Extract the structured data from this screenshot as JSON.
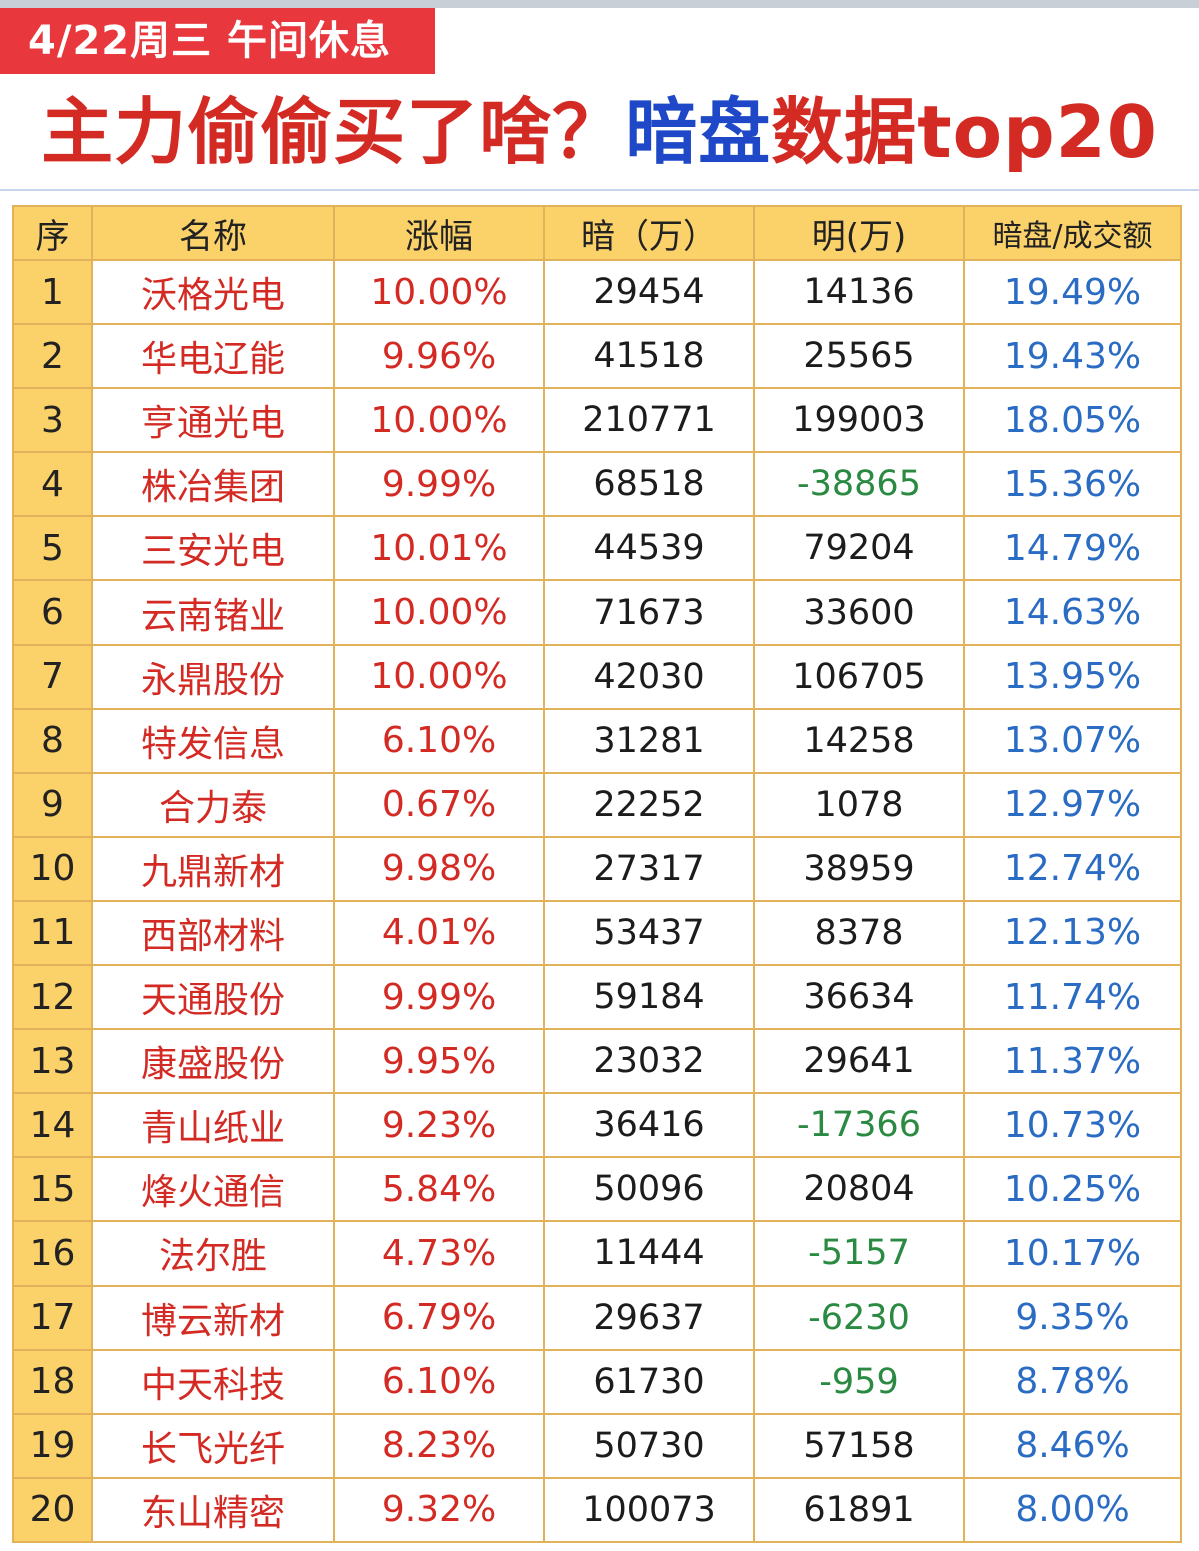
{
  "banner": {
    "date_text": "4/22周三 午间休息"
  },
  "headline": {
    "part1": "主力偷偷买了啥？",
    "part2": "暗盘",
    "part3": "数据top20"
  },
  "colors": {
    "red": "#d42a24",
    "blue": "#1f48c8",
    "green": "#2a8a42",
    "header_yellow": "#fbd26a",
    "ratio_blue": "#2a6bc4"
  },
  "table": {
    "headers": [
      "序",
      "名称",
      "涨幅",
      "暗（万）",
      "明(万)",
      "暗盘/成交额"
    ],
    "rows": [
      {
        "idx": "1",
        "name": "沃格光电",
        "change": "10.00%",
        "dark": "29454",
        "lit": "14136",
        "ratio": "19.49%"
      },
      {
        "idx": "2",
        "name": "华电辽能",
        "change": "9.96%",
        "dark": "41518",
        "lit": "25565",
        "ratio": "19.43%"
      },
      {
        "idx": "3",
        "name": "亨通光电",
        "change": "10.00%",
        "dark": "210771",
        "lit": "199003",
        "ratio": "18.05%"
      },
      {
        "idx": "4",
        "name": "株冶集团",
        "change": "9.99%",
        "dark": "68518",
        "lit": "-38865",
        "ratio": "15.36%"
      },
      {
        "idx": "5",
        "name": "三安光电",
        "change": "10.01%",
        "dark": "44539",
        "lit": "79204",
        "ratio": "14.79%"
      },
      {
        "idx": "6",
        "name": "云南锗业",
        "change": "10.00%",
        "dark": "71673",
        "lit": "33600",
        "ratio": "14.63%"
      },
      {
        "idx": "7",
        "name": "永鼎股份",
        "change": "10.00%",
        "dark": "42030",
        "lit": "106705",
        "ratio": "13.95%"
      },
      {
        "idx": "8",
        "name": "特发信息",
        "change": "6.10%",
        "dark": "31281",
        "lit": "14258",
        "ratio": "13.07%"
      },
      {
        "idx": "9",
        "name": "合力泰",
        "change": "0.67%",
        "dark": "22252",
        "lit": "1078",
        "ratio": "12.97%"
      },
      {
        "idx": "10",
        "name": "九鼎新材",
        "change": "9.98%",
        "dark": "27317",
        "lit": "38959",
        "ratio": "12.74%"
      },
      {
        "idx": "11",
        "name": "西部材料",
        "change": "4.01%",
        "dark": "53437",
        "lit": "8378",
        "ratio": "12.13%"
      },
      {
        "idx": "12",
        "name": "天通股份",
        "change": "9.99%",
        "dark": "59184",
        "lit": "36634",
        "ratio": "11.74%"
      },
      {
        "idx": "13",
        "name": "康盛股份",
        "change": "9.95%",
        "dark": "23032",
        "lit": "29641",
        "ratio": "11.37%"
      },
      {
        "idx": "14",
        "name": "青山纸业",
        "change": "9.23%",
        "dark": "36416",
        "lit": "-17366",
        "ratio": "10.73%"
      },
      {
        "idx": "15",
        "name": "烽火通信",
        "change": "5.84%",
        "dark": "50096",
        "lit": "20804",
        "ratio": "10.25%"
      },
      {
        "idx": "16",
        "name": "法尔胜",
        "change": "4.73%",
        "dark": "11444",
        "lit": "-5157",
        "ratio": "10.17%"
      },
      {
        "idx": "17",
        "name": "博云新材",
        "change": "6.79%",
        "dark": "29637",
        "lit": "-6230",
        "ratio": "9.35%"
      },
      {
        "idx": "18",
        "name": "中天科技",
        "change": "6.10%",
        "dark": "61730",
        "lit": "-959",
        "ratio": "8.78%"
      },
      {
        "idx": "19",
        "name": "长飞光纤",
        "change": "8.23%",
        "dark": "50730",
        "lit": "57158",
        "ratio": "8.46%"
      },
      {
        "idx": "20",
        "name": "东山精密",
        "change": "9.32%",
        "dark": "100073",
        "lit": "61891",
        "ratio": "8.00%"
      }
    ]
  }
}
